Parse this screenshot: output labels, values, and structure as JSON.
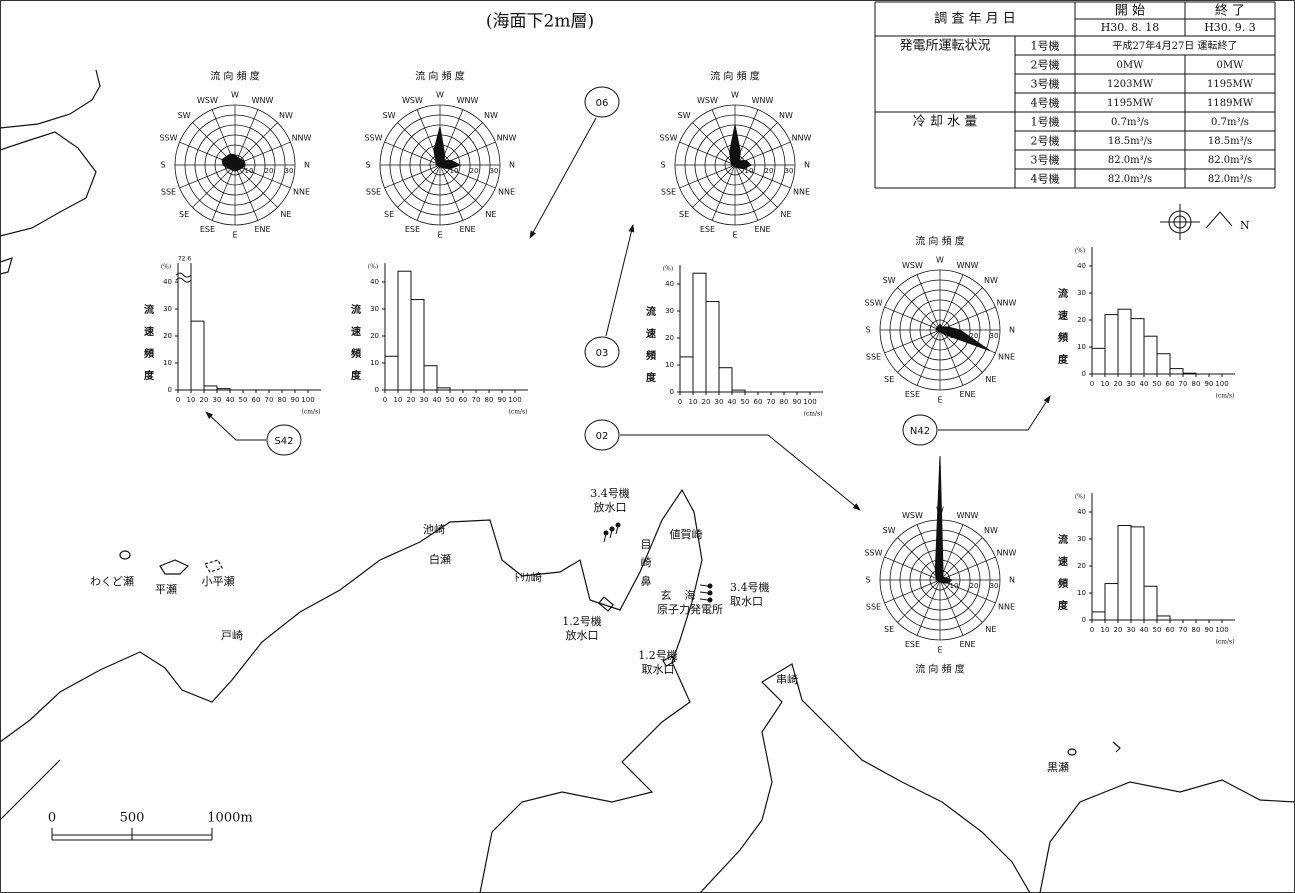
{
  "title": "(海面下2m層)",
  "table": {
    "header": {
      "label": "調 査 年 月 日",
      "start": "開 始",
      "end": "終 了",
      "start_date": "H30. 8. 18",
      "end_date": "H30. 9. 3"
    },
    "groups": [
      {
        "label": "発電所運転状況",
        "rows": [
          [
            "1号機",
            "平成27年4月27日 運転終了"
          ],
          [
            "2号機",
            "0MW",
            "0MW"
          ],
          [
            "3号機",
            "1203MW",
            "1195MW"
          ],
          [
            "4号機",
            "1195MW",
            "1189MW"
          ]
        ]
      },
      {
        "label": "冷 却 水 量",
        "rows": [
          [
            "1号機",
            "0.7m³/s",
            "0.7m³/s"
          ],
          [
            "2号機",
            "18.5m³/s",
            "18.5m³/s"
          ],
          [
            "3号機",
            "82.0m³/s",
            "82.0m³/s"
          ],
          [
            "4号機",
            "82.0m³/s",
            "82.0m³/s"
          ]
        ]
      }
    ]
  },
  "rose_axis": {
    "title": "流 向 頻 度",
    "directions": [
      "N",
      "NNE",
      "NE",
      "ENE",
      "E",
      "ESE",
      "SE",
      "SSE",
      "S",
      "SSW",
      "SW",
      "WSW",
      "W",
      "WNW",
      "NW",
      "NNW"
    ],
    "rticks": [
      10,
      20,
      30
    ],
    "rgrid": [
      5,
      10,
      15,
      20,
      25,
      30
    ]
  },
  "hist_axis": {
    "ylabel": "流速頻度",
    "yunit": "(%)",
    "xunit": "(cm/s)",
    "bins": [
      0,
      10,
      20,
      30,
      40,
      50,
      60,
      70,
      80,
      90,
      100,
      110
    ],
    "xticks": [
      0,
      10,
      20,
      30,
      40,
      50,
      60,
      70,
      80,
      90,
      100
    ],
    "yticks": [
      0,
      10,
      20,
      30,
      40
    ],
    "ylim": [
      0,
      47
    ]
  },
  "panels": [
    {
      "station": "S42",
      "rose": [
        5,
        4,
        3,
        3,
        3,
        3,
        3,
        4,
        6,
        7,
        6,
        6,
        5,
        4,
        4,
        5
      ],
      "hist": [
        72.6,
        25.5,
        1.5,
        0.5,
        0,
        0,
        0,
        0,
        0,
        0,
        0
      ],
      "value_labels": [
        "72.6",
        null,
        null,
        null,
        null,
        null,
        null,
        null,
        null,
        null,
        null
      ]
    },
    {
      "station": "06",
      "rose": [
        10,
        5,
        2,
        1,
        1,
        1,
        1,
        1,
        2,
        2,
        3,
        8,
        19,
        6,
        3,
        6
      ],
      "hist": [
        12.5,
        44,
        33.5,
        9,
        0.8,
        0,
        0,
        0,
        0,
        0,
        0
      ]
    },
    {
      "station": "03",
      "rose": [
        8,
        5,
        2,
        1,
        1,
        1,
        1,
        1,
        2,
        2,
        3,
        7,
        20,
        7,
        3,
        6
      ],
      "hist": [
        13,
        44,
        33.5,
        9,
        0.7,
        0,
        0,
        0,
        0,
        0,
        0
      ]
    },
    {
      "station": "N42",
      "rose": [
        10,
        27,
        3,
        1,
        1,
        1,
        1,
        1,
        2,
        2,
        2,
        2,
        3,
        2,
        2,
        4
      ],
      "hist": [
        9.5,
        22,
        24,
        20.5,
        14,
        7.5,
        2,
        0.3,
        0,
        0,
        0
      ]
    },
    {
      "station": "02",
      "rose": [
        6,
        4,
        2,
        1,
        1,
        1,
        1,
        1,
        2,
        2,
        3,
        6,
        62,
        4,
        2,
        3
      ],
      "hist": [
        3,
        13.5,
        35,
        34.5,
        12.5,
        1.5,
        0,
        0,
        0,
        0,
        0
      ]
    }
  ],
  "compass_label": "N",
  "map_labels": [
    "わくど瀬",
    "小平瀬",
    "平瀬",
    "戸崎",
    "白瀬",
    "池崎",
    "ﾄﾘｶ崎",
    "3.4号機",
    "放水口",
    "目",
    "崎",
    "鼻",
    "値賀崎",
    "玄",
    "海",
    "原子力発電所",
    "3.4号機",
    "取水口",
    "1.2号機",
    "放水口",
    "1.2号機",
    "取水口",
    "串崎",
    "黒瀬"
  ],
  "scale": {
    "ticks": [
      0,
      500,
      1000
    ],
    "labels": [
      "0",
      "500",
      "1000m"
    ]
  }
}
